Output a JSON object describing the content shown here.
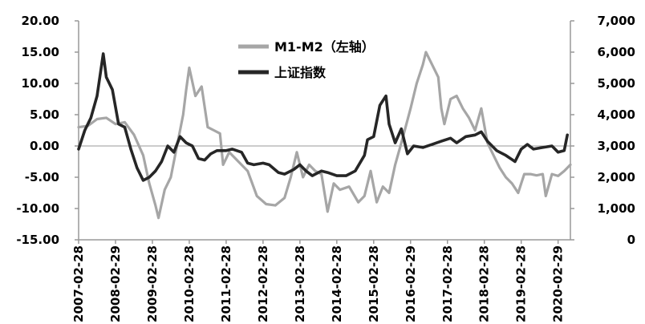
{
  "chart_data": {
    "type": "line",
    "title": "",
    "legend": {
      "placement": "top-center",
      "entries": [
        {
          "label": "M1-M2（左轴）",
          "color": "#a6a6a6"
        },
        {
          "label": "上证指数",
          "color": "#262626"
        }
      ]
    },
    "x_tick_labels": [
      "2007-02-28",
      "2008-02-29",
      "2009-02-28",
      "2010-02-28",
      "2011-02-28",
      "2012-02-28",
      "2013-02-28",
      "2014-02-28",
      "2015-02-28",
      "2016-02-29",
      "2017-02-28",
      "2018-02-28",
      "2019-02-28",
      "2020-02-29"
    ],
    "left_axis": {
      "ylim": [
        -15,
        20
      ],
      "tick_values": [
        -15,
        -10,
        -5,
        0,
        5,
        10,
        15,
        20
      ],
      "tick_labels": [
        "-15.00",
        "-10.00",
        "-5.00",
        "0.00",
        "5.00",
        "10.00",
        "15.00",
        "20.00"
      ]
    },
    "right_axis": {
      "ylim": [
        0,
        7000
      ],
      "tick_values": [
        0,
        1000,
        2000,
        3000,
        4000,
        5000,
        6000,
        7000
      ],
      "tick_labels": [
        "0",
        "1,000",
        "2,000",
        "3,000",
        "4,000",
        "5,000",
        "6,000",
        "7,000"
      ]
    },
    "grid": false,
    "series": [
      {
        "name": "M1-M2（左轴）",
        "axis": "left",
        "color": "#a6a6a6",
        "points": [
          [
            "2007-02",
            3.0
          ],
          [
            "2007-05",
            3.2
          ],
          [
            "2007-08",
            4.3
          ],
          [
            "2007-11",
            4.5
          ],
          [
            "2008-02",
            3.5
          ],
          [
            "2008-05",
            3.8
          ],
          [
            "2008-08",
            1.8
          ],
          [
            "2008-11",
            -1.5
          ],
          [
            "2009-01",
            -6.0
          ],
          [
            "2009-03",
            -9.5
          ],
          [
            "2009-04",
            -11.5
          ],
          [
            "2009-06",
            -7.0
          ],
          [
            "2009-08",
            -5.0
          ],
          [
            "2009-10",
            0.0
          ],
          [
            "2009-12",
            5.0
          ],
          [
            "2010-01",
            9.0
          ],
          [
            "2010-02",
            12.5
          ],
          [
            "2010-04",
            8.0
          ],
          [
            "2010-06",
            9.5
          ],
          [
            "2010-08",
            3.0
          ],
          [
            "2010-10",
            2.5
          ],
          [
            "2010-12",
            2.0
          ],
          [
            "2011-01",
            -3.0
          ],
          [
            "2011-03",
            -1.0
          ],
          [
            "2011-06",
            -2.5
          ],
          [
            "2011-09",
            -4.0
          ],
          [
            "2011-12",
            -8.0
          ],
          [
            "2012-03",
            -9.3
          ],
          [
            "2012-06",
            -9.5
          ],
          [
            "2012-09",
            -8.3
          ],
          [
            "2012-11",
            -5.0
          ],
          [
            "2013-01",
            -1.0
          ],
          [
            "2013-03",
            -5.0
          ],
          [
            "2013-05",
            -3.0
          ],
          [
            "2013-07",
            -4.0
          ],
          [
            "2013-09",
            -4.5
          ],
          [
            "2013-11",
            -10.5
          ],
          [
            "2014-01",
            -6.0
          ],
          [
            "2014-03",
            -7.0
          ],
          [
            "2014-06",
            -6.5
          ],
          [
            "2014-09",
            -9.0
          ],
          [
            "2014-11",
            -8.0
          ],
          [
            "2015-01",
            -4.0
          ],
          [
            "2015-03",
            -9.0
          ],
          [
            "2015-05",
            -6.5
          ],
          [
            "2015-07",
            -7.5
          ],
          [
            "2015-09",
            -3.0
          ],
          [
            "2015-11",
            0.5
          ],
          [
            "2016-02",
            6.0
          ],
          [
            "2016-04",
            10.0
          ],
          [
            "2016-06",
            13.0
          ],
          [
            "2016-07",
            15.0
          ],
          [
            "2016-09",
            13.0
          ],
          [
            "2016-11",
            11.0
          ],
          [
            "2016-12",
            6.0
          ],
          [
            "2017-01",
            3.5
          ],
          [
            "2017-03",
            7.5
          ],
          [
            "2017-05",
            8.0
          ],
          [
            "2017-07",
            6.0
          ],
          [
            "2017-09",
            4.5
          ],
          [
            "2017-11",
            2.5
          ],
          [
            "2018-01",
            6.0
          ],
          [
            "2018-03",
            0.5
          ],
          [
            "2018-05",
            -1.5
          ],
          [
            "2018-07",
            -3.5
          ],
          [
            "2018-09",
            -5.0
          ],
          [
            "2018-11",
            -6.0
          ],
          [
            "2019-01",
            -7.5
          ],
          [
            "2019-02",
            -6.0
          ],
          [
            "2019-03",
            -4.5
          ],
          [
            "2019-05",
            -4.5
          ],
          [
            "2019-07",
            -4.7
          ],
          [
            "2019-09",
            -4.5
          ],
          [
            "2019-10",
            -8.0
          ],
          [
            "2019-12",
            -4.5
          ],
          [
            "2020-02",
            -4.8
          ],
          [
            "2020-04",
            -4.0
          ],
          [
            "2020-06",
            -3.0
          ]
        ]
      },
      {
        "name": "上证指数",
        "axis": "right",
        "color": "#262626",
        "points": [
          [
            "2007-02",
            2900
          ],
          [
            "2007-04",
            3500
          ],
          [
            "2007-06",
            3900
          ],
          [
            "2007-08",
            4600
          ],
          [
            "2007-10",
            5950
          ],
          [
            "2007-11",
            5200
          ],
          [
            "2008-01",
            4800
          ],
          [
            "2008-03",
            3700
          ],
          [
            "2008-05",
            3600
          ],
          [
            "2008-07",
            2900
          ],
          [
            "2008-09",
            2300
          ],
          [
            "2008-11",
            1900
          ],
          [
            "2009-01",
            2000
          ],
          [
            "2009-03",
            2200
          ],
          [
            "2009-05",
            2500
          ],
          [
            "2009-07",
            3000
          ],
          [
            "2009-09",
            2800
          ],
          [
            "2009-11",
            3300
          ],
          [
            "2010-01",
            3100
          ],
          [
            "2010-03",
            3000
          ],
          [
            "2010-05",
            2600
          ],
          [
            "2010-07",
            2550
          ],
          [
            "2010-09",
            2750
          ],
          [
            "2010-11",
            2850
          ],
          [
            "2011-02",
            2850
          ],
          [
            "2011-04",
            2900
          ],
          [
            "2011-07",
            2800
          ],
          [
            "2011-09",
            2450
          ],
          [
            "2011-11",
            2400
          ],
          [
            "2012-02",
            2450
          ],
          [
            "2012-04",
            2400
          ],
          [
            "2012-07",
            2150
          ],
          [
            "2012-09",
            2100
          ],
          [
            "2012-12",
            2250
          ],
          [
            "2013-02",
            2400
          ],
          [
            "2013-04",
            2200
          ],
          [
            "2013-06",
            2050
          ],
          [
            "2013-09",
            2200
          ],
          [
            "2013-11",
            2150
          ],
          [
            "2014-02",
            2050
          ],
          [
            "2014-05",
            2050
          ],
          [
            "2014-08",
            2200
          ],
          [
            "2014-11",
            2700
          ],
          [
            "2014-12",
            3200
          ],
          [
            "2015-02",
            3300
          ],
          [
            "2015-04",
            4300
          ],
          [
            "2015-06",
            4600
          ],
          [
            "2015-07",
            3700
          ],
          [
            "2015-09",
            3100
          ],
          [
            "2015-11",
            3550
          ],
          [
            "2016-01",
            2750
          ],
          [
            "2016-03",
            3000
          ],
          [
            "2016-06",
            2950
          ],
          [
            "2016-09",
            3050
          ],
          [
            "2016-12",
            3150
          ],
          [
            "2017-03",
            3250
          ],
          [
            "2017-05",
            3100
          ],
          [
            "2017-08",
            3300
          ],
          [
            "2017-11",
            3350
          ],
          [
            "2018-01",
            3450
          ],
          [
            "2018-03",
            3150
          ],
          [
            "2018-06",
            2850
          ],
          [
            "2018-09",
            2700
          ],
          [
            "2018-12",
            2500
          ],
          [
            "2019-02",
            2900
          ],
          [
            "2019-04",
            3050
          ],
          [
            "2019-06",
            2900
          ],
          [
            "2019-09",
            2950
          ],
          [
            "2019-12",
            3000
          ],
          [
            "2020-02",
            2800
          ],
          [
            "2020-04",
            2850
          ],
          [
            "2020-05",
            3350
          ]
        ]
      }
    ]
  }
}
